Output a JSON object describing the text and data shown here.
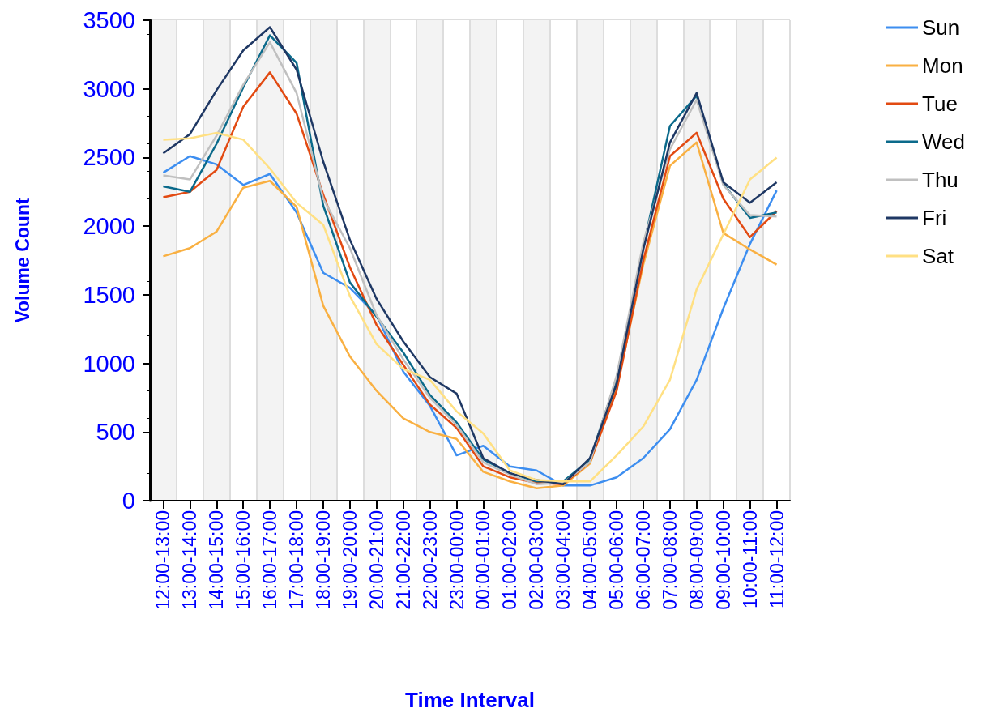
{
  "chart_data": {
    "type": "line",
    "xlabel": "Time Interval",
    "ylabel": "Volume Count",
    "categories": [
      "12:00-13:00",
      "13:00-14:00",
      "14:00-15:00",
      "15:00-16:00",
      "16:00-17:00",
      "17:00-18:00",
      "18:00-19:00",
      "19:00-20:00",
      "20:00-21:00",
      "21:00-22:00",
      "22:00-23:00",
      "23:00-00:00",
      "00:00-01:00",
      "01:00-02:00",
      "02:00-03:00",
      "03:00-04:00",
      "04:00-05:00",
      "05:00-06:00",
      "06:00-07:00",
      "07:00-08:00",
      "08:00-09:00",
      "09:00-10:00",
      "10:00-11:00",
      "11:00-12:00"
    ],
    "series": [
      {
        "name": "Sun",
        "color": "#3d8ef0",
        "values": [
          2390,
          2510,
          2450,
          2300,
          2380,
          2100,
          1660,
          1550,
          1350,
          940,
          690,
          330,
          400,
          250,
          220,
          110,
          110,
          170,
          310,
          520,
          880,
          1400,
          1870,
          2260
        ]
      },
      {
        "name": "Mon",
        "color": "#f9b042",
        "values": [
          1780,
          1840,
          1960,
          2280,
          2330,
          2140,
          1420,
          1050,
          800,
          600,
          500,
          450,
          210,
          140,
          90,
          110,
          270,
          820,
          1720,
          2440,
          2610,
          1950,
          1830,
          1720
        ]
      },
      {
        "name": "Tue",
        "color": "#e24a12",
        "values": [
          2210,
          2250,
          2410,
          2870,
          3120,
          2820,
          2230,
          1700,
          1280,
          990,
          700,
          530,
          250,
          170,
          130,
          120,
          280,
          800,
          1750,
          2510,
          2680,
          2200,
          1920,
          2110
        ]
      },
      {
        "name": "Wed",
        "color": "#0b6a8b",
        "values": [
          2290,
          2250,
          2600,
          3010,
          3390,
          3190,
          2150,
          1590,
          1340,
          1080,
          770,
          570,
          300,
          200,
          140,
          140,
          300,
          890,
          1850,
          2730,
          2950,
          2310,
          2060,
          2100
        ]
      },
      {
        "name": "Thu",
        "color": "#c0c0c0",
        "values": [
          2370,
          2340,
          2660,
          3030,
          3340,
          2970,
          2200,
          1840,
          1350,
          1030,
          750,
          550,
          280,
          190,
          120,
          130,
          280,
          910,
          1880,
          2560,
          2920,
          2300,
          2080,
          2070
        ]
      },
      {
        "name": "Fri",
        "color": "#1f3864",
        "values": [
          2530,
          2670,
          2990,
          3280,
          3450,
          3140,
          2470,
          1900,
          1470,
          1160,
          900,
          780,
          310,
          200,
          150,
          120,
          310,
          850,
          1830,
          2610,
          2970,
          2320,
          2170,
          2320
        ]
      },
      {
        "name": "Sat",
        "color": "#ffe083",
        "values": [
          2630,
          2640,
          2680,
          2630,
          2420,
          2170,
          2010,
          1490,
          1140,
          960,
          880,
          650,
          490,
          220,
          150,
          140,
          140,
          330,
          540,
          880,
          1540,
          1940,
          2340,
          2500
        ]
      }
    ],
    "ylim": [
      0,
      3500
    ],
    "yticks": [
      0,
      500,
      1000,
      1500,
      2000,
      2500,
      3000,
      3500
    ],
    "grid": true,
    "legend": "top right",
    "marker": "none",
    "line_style": "solid"
  }
}
